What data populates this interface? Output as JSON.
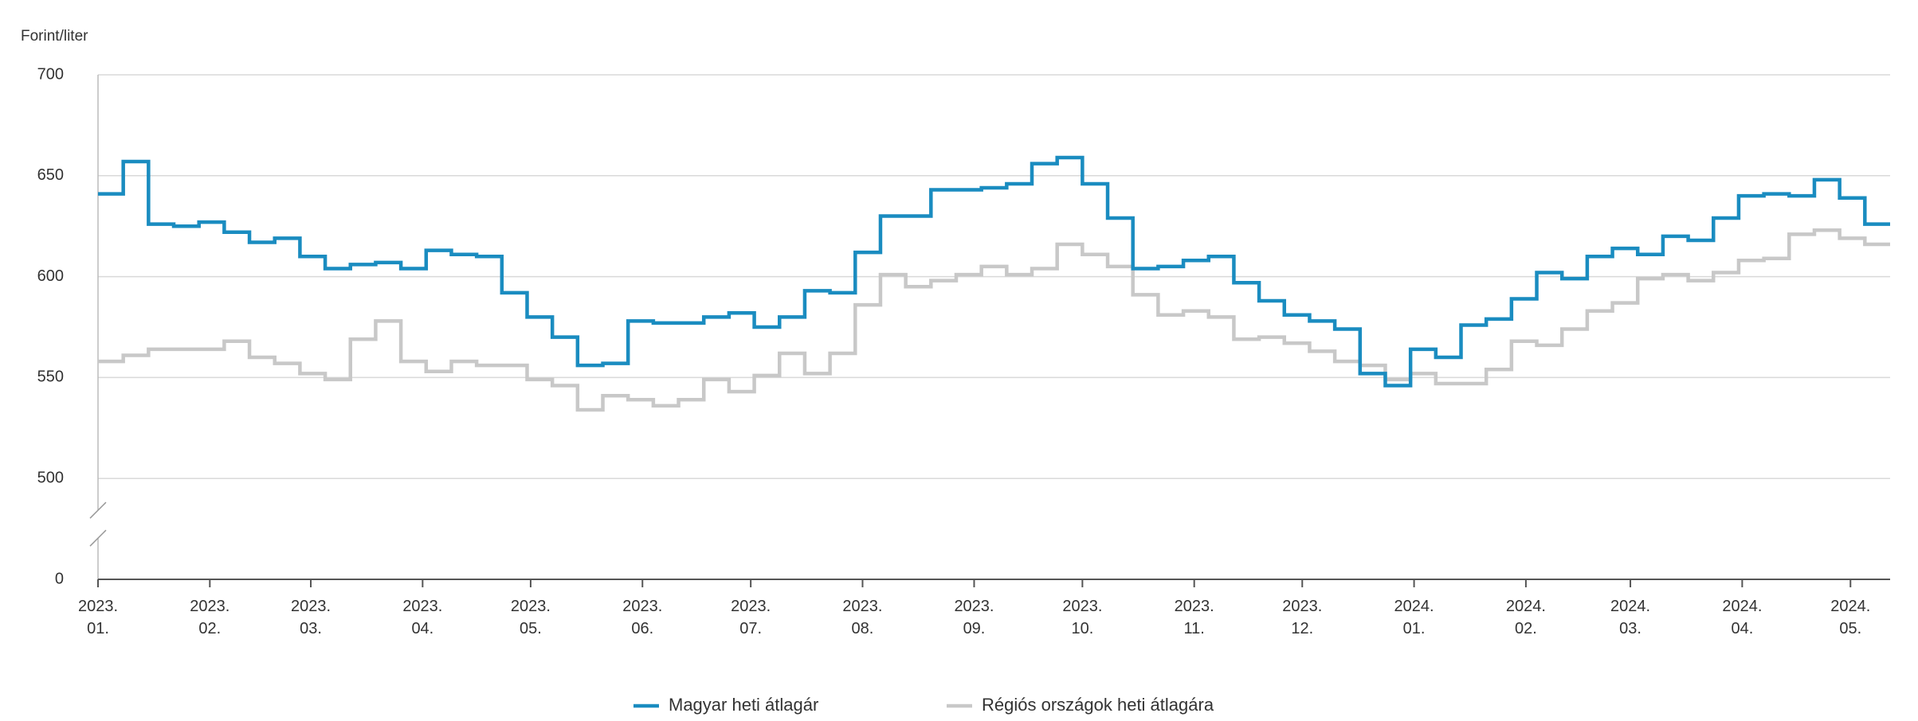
{
  "chart_data": {
    "type": "step-line",
    "y_axis_label": "Forint/liter",
    "ylim": [
      0,
      700
    ],
    "ybreak": [
      0,
      500
    ],
    "yticks": [
      0,
      500,
      550,
      600,
      650,
      700
    ],
    "grid": true,
    "xlim": [
      0,
      71
    ],
    "xticks": [
      {
        "value": 0,
        "label": "2023.\n01."
      },
      {
        "value": 4.43,
        "label": "2023.\n02."
      },
      {
        "value": 8.43,
        "label": "2023.\n03."
      },
      {
        "value": 12.86,
        "label": "2023.\n04."
      },
      {
        "value": 17.14,
        "label": "2023.\n05."
      },
      {
        "value": 21.57,
        "label": "2023.\n06."
      },
      {
        "value": 25.86,
        "label": "2023.\n07."
      },
      {
        "value": 30.29,
        "label": "2023.\n08."
      },
      {
        "value": 34.71,
        "label": "2023.\n09."
      },
      {
        "value": 39,
        "label": "2023.\n10."
      },
      {
        "value": 43.43,
        "label": "2023.\n11."
      },
      {
        "value": 47.71,
        "label": "2023.\n12."
      },
      {
        "value": 52.14,
        "label": "2024.\n01."
      },
      {
        "value": 56.57,
        "label": "2024.\n02."
      },
      {
        "value": 60.71,
        "label": "2024.\n03."
      },
      {
        "value": 65.14,
        "label": "2024.\n04."
      },
      {
        "value": 69.43,
        "label": "2024.\n05."
      }
    ],
    "x": [
      0,
      1,
      2,
      3,
      4,
      5,
      6,
      7,
      8,
      9,
      10,
      11,
      12,
      13,
      14,
      15,
      16,
      17,
      18,
      19,
      20,
      21,
      22,
      23,
      24,
      25,
      26,
      27,
      28,
      29,
      30,
      31,
      32,
      33,
      34,
      35,
      36,
      37,
      38,
      39,
      40,
      41,
      42,
      43,
      44,
      45,
      46,
      47,
      48,
      49,
      50,
      51,
      52,
      53,
      54,
      55,
      56,
      57,
      58,
      59,
      60,
      61,
      62,
      63,
      64,
      65,
      66,
      67,
      68,
      69,
      70
    ],
    "series": [
      {
        "name": "Magyar heti átlagár",
        "color": "#1a8cc0",
        "values": [
          641,
          657,
          626,
          625,
          627,
          622,
          617,
          619,
          610,
          604,
          606,
          607,
          604,
          613,
          611,
          610,
          592,
          580,
          570,
          556,
          557,
          578,
          577,
          577,
          580,
          582,
          575,
          580,
          593,
          592,
          612,
          630,
          630,
          643,
          643,
          644,
          646,
          656,
          659,
          646,
          629,
          604,
          605,
          608,
          610,
          597,
          588,
          581,
          578,
          574,
          552,
          546,
          564,
          560,
          576,
          579,
          589,
          602,
          599,
          610,
          614,
          611,
          620,
          618,
          629,
          640,
          641,
          640,
          648,
          639,
          626
        ]
      },
      {
        "name": "Régiós országok heti átlagára",
        "color": "#c8c8c8",
        "values": [
          558,
          561,
          564,
          564,
          564,
          568,
          560,
          557,
          552,
          549,
          569,
          578,
          558,
          553,
          558,
          556,
          556,
          549,
          546,
          534,
          541,
          539,
          536,
          539,
          549,
          543,
          551,
          562,
          552,
          562,
          586,
          601,
          595,
          598,
          601,
          605,
          601,
          604,
          616,
          611,
          605,
          591,
          581,
          583,
          580,
          569,
          570,
          567,
          563,
          558,
          556,
          549,
          552,
          547,
          547,
          554,
          568,
          566,
          574,
          583,
          587,
          599,
          601,
          598,
          602,
          608,
          609,
          621,
          623,
          619,
          616
        ]
      }
    ]
  }
}
